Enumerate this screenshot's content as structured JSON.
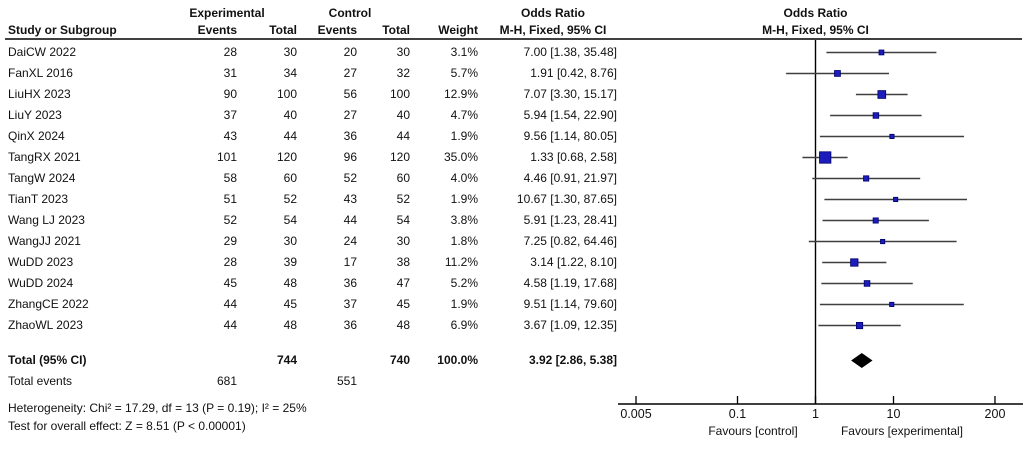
{
  "header": {
    "group_experimental": "Experimental",
    "group_control": "Control",
    "group_odds_ratio_text": "Odds Ratio",
    "group_odds_ratio_plot": "Odds Ratio",
    "study": "Study or Subgroup",
    "events_exp": "Events",
    "total_exp": "Total",
    "events_ctrl": "Events",
    "total_ctrl": "Total",
    "weight": "Weight",
    "mh_fixed_text": "M-H, Fixed, 95% CI",
    "mh_fixed_plot": "M-H, Fixed, 95% CI"
  },
  "footnotes": {
    "heterogeneity": "Heterogeneity: Chi² = 17.29, df = 13 (P = 0.19); I² = 25%",
    "overall_effect": "Test for overall effect: Z = 8.51 (P < 0.00001)"
  },
  "colors": {
    "marker_fill": "#1c1cba",
    "marker_stroke": "#00006b",
    "ci_line": "#3f3f3f",
    "axis_line": "#000000",
    "diamond": "#000000"
  },
  "chart_data": {
    "type": "forest",
    "effect_measure": "Odds Ratio, M-H, Fixed, 95% CI",
    "x_scale": "log",
    "x_ticks": [
      0.005,
      0.1,
      1,
      10,
      200
    ],
    "x_tick_labels": [
      "0.005",
      "0.1",
      "1",
      "10",
      "200"
    ],
    "favours_left": "Favours [control]",
    "favours_right": "Favours [experimental]",
    "studies": [
      {
        "name": "DaiCW 2022",
        "exp_events": 28,
        "exp_total": 30,
        "ctrl_events": 20,
        "ctrl_total": 30,
        "weight_pct": 3.1,
        "or": 7.0,
        "ci_low": 1.38,
        "ci_high": 35.48
      },
      {
        "name": "FanXL 2016",
        "exp_events": 31,
        "exp_total": 34,
        "ctrl_events": 27,
        "ctrl_total": 32,
        "weight_pct": 5.7,
        "or": 1.91,
        "ci_low": 0.42,
        "ci_high": 8.76
      },
      {
        "name": "LiuHX 2023",
        "exp_events": 90,
        "exp_total": 100,
        "ctrl_events": 56,
        "ctrl_total": 100,
        "weight_pct": 12.9,
        "or": 7.07,
        "ci_low": 3.3,
        "ci_high": 15.17
      },
      {
        "name": "LiuY 2023",
        "exp_events": 37,
        "exp_total": 40,
        "ctrl_events": 27,
        "ctrl_total": 40,
        "weight_pct": 4.7,
        "or": 5.94,
        "ci_low": 1.54,
        "ci_high": 22.9
      },
      {
        "name": "QinX 2024",
        "exp_events": 43,
        "exp_total": 44,
        "ctrl_events": 36,
        "ctrl_total": 44,
        "weight_pct": 1.9,
        "or": 9.56,
        "ci_low": 1.14,
        "ci_high": 80.05
      },
      {
        "name": "TangRX 2021",
        "exp_events": 101,
        "exp_total": 120,
        "ctrl_events": 96,
        "ctrl_total": 120,
        "weight_pct": 35.0,
        "or": 1.33,
        "ci_low": 0.68,
        "ci_high": 2.58
      },
      {
        "name": "TangW 2024",
        "exp_events": 58,
        "exp_total": 60,
        "ctrl_events": 52,
        "ctrl_total": 60,
        "weight_pct": 4.0,
        "or": 4.46,
        "ci_low": 0.91,
        "ci_high": 21.97
      },
      {
        "name": "TianT 2023",
        "exp_events": 51,
        "exp_total": 52,
        "ctrl_events": 43,
        "ctrl_total": 52,
        "weight_pct": 1.9,
        "or": 10.67,
        "ci_low": 1.3,
        "ci_high": 87.65
      },
      {
        "name": "Wang LJ 2023",
        "exp_events": 52,
        "exp_total": 54,
        "ctrl_events": 44,
        "ctrl_total": 54,
        "weight_pct": 3.8,
        "or": 5.91,
        "ci_low": 1.23,
        "ci_high": 28.41
      },
      {
        "name": "WangJJ 2021",
        "exp_events": 29,
        "exp_total": 30,
        "ctrl_events": 24,
        "ctrl_total": 30,
        "weight_pct": 1.8,
        "or": 7.25,
        "ci_low": 0.82,
        "ci_high": 64.46
      },
      {
        "name": "WuDD 2023",
        "exp_events": 28,
        "exp_total": 39,
        "ctrl_events": 17,
        "ctrl_total": 38,
        "weight_pct": 11.2,
        "or": 3.14,
        "ci_low": 1.22,
        "ci_high": 8.1
      },
      {
        "name": "WuDD 2024",
        "exp_events": 45,
        "exp_total": 48,
        "ctrl_events": 36,
        "ctrl_total": 47,
        "weight_pct": 5.2,
        "or": 4.58,
        "ci_low": 1.19,
        "ci_high": 17.68
      },
      {
        "name": "ZhangCE 2022",
        "exp_events": 44,
        "exp_total": 45,
        "ctrl_events": 37,
        "ctrl_total": 45,
        "weight_pct": 1.9,
        "or": 9.51,
        "ci_low": 1.14,
        "ci_high": 79.6
      },
      {
        "name": "ZhaoWL 2023",
        "exp_events": 44,
        "exp_total": 48,
        "ctrl_events": 36,
        "ctrl_total": 48,
        "weight_pct": 6.9,
        "or": 3.67,
        "ci_low": 1.09,
        "ci_high": 12.35
      }
    ],
    "total": {
      "label": "Total (95% CI)",
      "exp_total": 744,
      "ctrl_total": 740,
      "weight_pct": 100.0,
      "or": 3.92,
      "ci_low": 2.86,
      "ci_high": 5.38,
      "events_label": "Total events",
      "exp_events": 681,
      "ctrl_events": 551
    },
    "stats": {
      "chi2": 17.29,
      "df": 13,
      "p_heterogeneity": 0.19,
      "i2_pct": 25,
      "z": 8.51,
      "p_overall": "< 0.00001"
    }
  }
}
